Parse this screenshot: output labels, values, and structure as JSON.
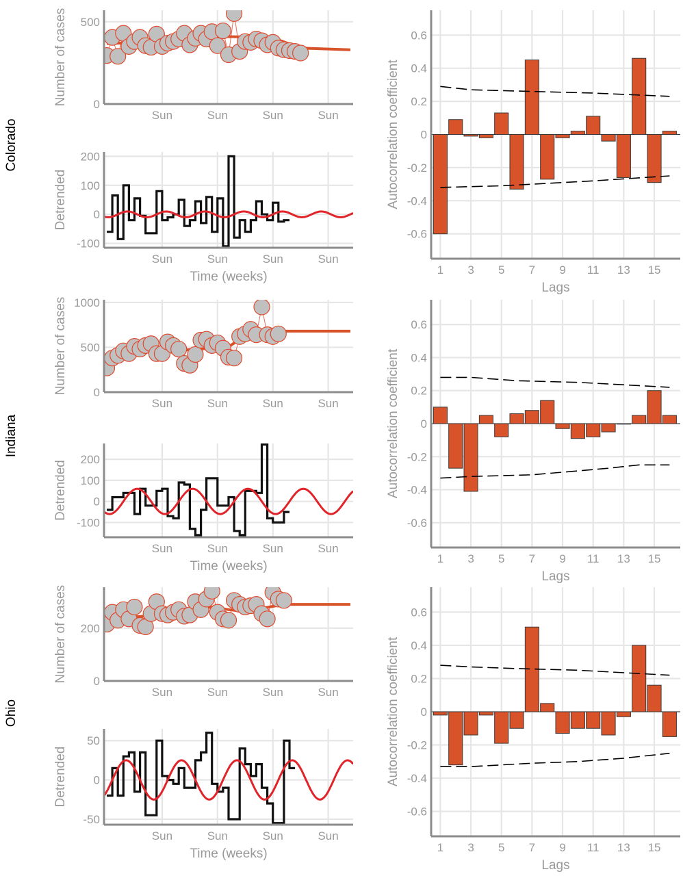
{
  "colors": {
    "grid": "#e6e6e6",
    "axis": "#8c8c8c",
    "dot_fill": "#c0c0c0",
    "dot_stroke": "#e04a2e",
    "trend": "#d9532a",
    "sine": "#e0242a",
    "bar_fill": "#d9532a",
    "bar_stroke": "#3a3a3a",
    "bound": "#000000"
  },
  "chart_data": [
    {
      "id": "colorado-cases",
      "state": "Colorado",
      "type": "scatter",
      "ylabel": "Number of cases",
      "xlabel": "",
      "xlim": [
        0.5,
        45.5
      ],
      "ylim": [
        0,
        570
      ],
      "yticks": [
        {
          "v": 0,
          "l": "0"
        },
        {
          "v": 500,
          "l": "500"
        }
      ],
      "xticks": [
        {
          "v": 11,
          "l": "Sun"
        },
        {
          "v": 21,
          "l": "Sun"
        },
        {
          "v": 31,
          "l": "Sun"
        },
        {
          "v": 41,
          "l": "Sun"
        }
      ],
      "points": [
        [
          1,
          295
        ],
        [
          2,
          405
        ],
        [
          3,
          290
        ],
        [
          4,
          430
        ],
        [
          5,
          350
        ],
        [
          6,
          380
        ],
        [
          7,
          405
        ],
        [
          8,
          355
        ],
        [
          9,
          345
        ],
        [
          10,
          425
        ],
        [
          11,
          350
        ],
        [
          12,
          370
        ],
        [
          13,
          380
        ],
        [
          14,
          395
        ],
        [
          15,
          430
        ],
        [
          16,
          360
        ],
        [
          17,
          400
        ],
        [
          18,
          430
        ],
        [
          19,
          395
        ],
        [
          20,
          440
        ],
        [
          21,
          355
        ],
        [
          22,
          445
        ],
        [
          23,
          300
        ],
        [
          24,
          550
        ],
        [
          25,
          320
        ],
        [
          26,
          380
        ],
        [
          27,
          375
        ],
        [
          28,
          395
        ],
        [
          29,
          385
        ],
        [
          30,
          360
        ],
        [
          31,
          375
        ],
        [
          32,
          340
        ],
        [
          33,
          330
        ],
        [
          34,
          325
        ],
        [
          35,
          320
        ],
        [
          36,
          310
        ]
      ],
      "trend": [
        [
          1,
          368
        ],
        [
          5,
          372
        ],
        [
          10,
          385
        ],
        [
          15,
          400
        ],
        [
          20,
          412
        ],
        [
          25,
          408
        ],
        [
          28,
          405
        ],
        [
          32,
          390
        ],
        [
          36,
          340
        ],
        [
          45,
          330
        ]
      ]
    },
    {
      "id": "colorado-detrended",
      "state": "Colorado",
      "type": "line",
      "ylabel": "Detrended",
      "xlabel": "Time (weeks)",
      "xlim": [
        0.5,
        45.5
      ],
      "ylim": [
        -115,
        215
      ],
      "yticks": [
        {
          "v": -100,
          "l": "-100"
        },
        {
          "v": 0,
          "l": "0"
        },
        {
          "v": 100,
          "l": "100"
        },
        {
          "v": 200,
          "l": "200"
        }
      ],
      "xticks": [
        {
          "v": 11,
          "l": "Sun"
        },
        {
          "v": 21,
          "l": "Sun"
        },
        {
          "v": 31,
          "l": "Sun"
        },
        {
          "v": 41,
          "l": "Sun"
        }
      ],
      "residual": [
        -60,
        65,
        -85,
        100,
        -20,
        55,
        -5,
        -65,
        -65,
        80,
        -20,
        -10,
        0,
        50,
        -40,
        -20,
        45,
        -30,
        60,
        -60,
        55,
        -110,
        200,
        -80,
        -20,
        -60,
        -20,
        45,
        0,
        -20,
        40,
        -25,
        -20
      ],
      "sine": {
        "amp": 10,
        "period": 7,
        "phase": 3
      }
    },
    {
      "id": "colorado-acf",
      "state": "Colorado",
      "type": "bar",
      "ylabel": "Autocorrelation coefficient",
      "xlabel": "Lags",
      "xlim": [
        0.4,
        16.7
      ],
      "ylim": [
        -0.75,
        0.75
      ],
      "yticks": [
        {
          "v": -0.6,
          "l": "-0.6"
        },
        {
          "v": -0.4,
          "l": "-0.4"
        },
        {
          "v": -0.2,
          "l": "-0.2"
        },
        {
          "v": 0,
          "l": "0"
        },
        {
          "v": 0.2,
          "l": "0.2"
        },
        {
          "v": 0.4,
          "l": "0.4"
        },
        {
          "v": 0.6,
          "l": "0.6"
        }
      ],
      "xticks": [
        {
          "v": 1,
          "l": "1"
        },
        {
          "v": 3,
          "l": "3"
        },
        {
          "v": 5,
          "l": "5"
        },
        {
          "v": 7,
          "l": "7"
        },
        {
          "v": 9,
          "l": "9"
        },
        {
          "v": 11,
          "l": "11"
        },
        {
          "v": 13,
          "l": "13"
        },
        {
          "v": 15,
          "l": "15"
        }
      ],
      "values": [
        -0.6,
        0.09,
        -0.01,
        -0.02,
        0.13,
        -0.33,
        0.45,
        -0.27,
        -0.02,
        0.02,
        0.11,
        -0.04,
        -0.26,
        0.46,
        -0.29,
        0.02
      ],
      "upper": [
        [
          1,
          0.29
        ],
        [
          3,
          0.27
        ],
        [
          7,
          0.26
        ],
        [
          11,
          0.25
        ],
        [
          16,
          0.23
        ]
      ],
      "lower": [
        [
          1,
          -0.32
        ],
        [
          5,
          -0.31
        ],
        [
          7,
          -0.3
        ],
        [
          11,
          -0.28
        ],
        [
          16,
          -0.25
        ]
      ]
    },
    {
      "id": "indiana-cases",
      "state": "Indiana",
      "type": "scatter",
      "ylabel": "Number of cases",
      "xlabel": "",
      "xlim": [
        0.5,
        45.5
      ],
      "ylim": [
        0,
        1030
      ],
      "yticks": [
        {
          "v": 0,
          "l": "0"
        },
        {
          "v": 500,
          "l": "500"
        },
        {
          "v": 1000,
          "l": "1000"
        }
      ],
      "xticks": [
        {
          "v": 11,
          "l": "Sun"
        },
        {
          "v": 21,
          "l": "Sun"
        },
        {
          "v": 31,
          "l": "Sun"
        },
        {
          "v": 41,
          "l": "Sun"
        }
      ],
      "points": [
        [
          1,
          270
        ],
        [
          2,
          380
        ],
        [
          3,
          410
        ],
        [
          4,
          460
        ],
        [
          5,
          430
        ],
        [
          6,
          510
        ],
        [
          7,
          480
        ],
        [
          8,
          520
        ],
        [
          9,
          540
        ],
        [
          10,
          430
        ],
        [
          11,
          430
        ],
        [
          12,
          560
        ],
        [
          13,
          520
        ],
        [
          14,
          480
        ],
        [
          15,
          320
        ],
        [
          16,
          300
        ],
        [
          17,
          420
        ],
        [
          18,
          580
        ],
        [
          19,
          590
        ],
        [
          20,
          520
        ],
        [
          21,
          550
        ],
        [
          22,
          490
        ],
        [
          23,
          390
        ],
        [
          24,
          380
        ],
        [
          25,
          620
        ],
        [
          26,
          650
        ],
        [
          27,
          700
        ],
        [
          28,
          640
        ],
        [
          29,
          950
        ],
        [
          30,
          640
        ],
        [
          31,
          620
        ],
        [
          32,
          650
        ]
      ],
      "trend": [
        [
          1,
          340
        ],
        [
          5,
          410
        ],
        [
          10,
          470
        ],
        [
          15,
          470
        ],
        [
          18,
          480
        ],
        [
          21,
          500
        ],
        [
          23,
          505
        ],
        [
          25,
          590
        ],
        [
          27,
          640
        ],
        [
          30,
          690
        ],
        [
          32,
          680
        ],
        [
          45,
          680
        ]
      ]
    },
    {
      "id": "indiana-detrended",
      "state": "Indiana",
      "type": "line",
      "ylabel": "Detrended",
      "xlabel": "Time (weeks)",
      "xlim": [
        0.5,
        45.5
      ],
      "ylim": [
        -170,
        275
      ],
      "yticks": [
        {
          "v": -100,
          "l": "-100"
        },
        {
          "v": 0,
          "l": "0"
        },
        {
          "v": 100,
          "l": "100"
        },
        {
          "v": 200,
          "l": "200"
        }
      ],
      "xticks": [
        {
          "v": 11,
          "l": "Sun"
        },
        {
          "v": 21,
          "l": "Sun"
        },
        {
          "v": 31,
          "l": "Sun"
        },
        {
          "v": 41,
          "l": "Sun"
        }
      ],
      "residual": [
        -40,
        20,
        20,
        40,
        40,
        -60,
        60,
        -20,
        -20,
        50,
        60,
        -70,
        -80,
        90,
        80,
        -130,
        -160,
        -40,
        110,
        110,
        -20,
        -20,
        20,
        -140,
        -160,
        50,
        50,
        40,
        270,
        -80,
        -100,
        -100,
        -50
      ],
      "sine": {
        "amp": 60,
        "period": 10,
        "phase": 4
      }
    },
    {
      "id": "indiana-acf",
      "state": "Indiana",
      "type": "bar",
      "ylabel": "Autocorrelation coefficient",
      "xlabel": "Lags",
      "xlim": [
        0.4,
        16.7
      ],
      "ylim": [
        -0.75,
        0.75
      ],
      "yticks": [
        {
          "v": -0.6,
          "l": "-0.6"
        },
        {
          "v": -0.4,
          "l": "-0.4"
        },
        {
          "v": -0.2,
          "l": "-0.2"
        },
        {
          "v": 0,
          "l": "0"
        },
        {
          "v": 0.2,
          "l": "0.2"
        },
        {
          "v": 0.4,
          "l": "0.4"
        },
        {
          "v": 0.6,
          "l": "0.6"
        }
      ],
      "xticks": [
        {
          "v": 1,
          "l": "1"
        },
        {
          "v": 3,
          "l": "3"
        },
        {
          "v": 5,
          "l": "5"
        },
        {
          "v": 7,
          "l": "7"
        },
        {
          "v": 9,
          "l": "9"
        },
        {
          "v": 11,
          "l": "11"
        },
        {
          "v": 13,
          "l": "13"
        },
        {
          "v": 15,
          "l": "15"
        }
      ],
      "values": [
        0.1,
        -0.27,
        -0.41,
        0.05,
        -0.08,
        0.06,
        0.08,
        0.14,
        -0.03,
        -0.09,
        -0.08,
        -0.05,
        0.0,
        0.05,
        0.2,
        0.05
      ],
      "upper": [
        [
          1,
          0.28
        ],
        [
          3,
          0.28
        ],
        [
          6,
          0.26
        ],
        [
          10,
          0.25
        ],
        [
          16,
          0.22
        ]
      ],
      "lower": [
        [
          1,
          -0.33
        ],
        [
          3,
          -0.32
        ],
        [
          7,
          -0.31
        ],
        [
          12,
          -0.27
        ],
        [
          14,
          -0.25
        ],
        [
          16,
          -0.25
        ]
      ]
    },
    {
      "id": "ohio-cases",
      "state": "Ohio",
      "type": "scatter",
      "ylabel": "Number of cases",
      "xlabel": "",
      "xlim": [
        0.5,
        45.5
      ],
      "ylim": [
        0,
        355
      ],
      "yticks": [
        {
          "v": 0,
          "l": "0"
        },
        {
          "v": 200,
          "l": "200"
        }
      ],
      "xticks": [
        {
          "v": 11,
          "l": "Sun"
        },
        {
          "v": 21,
          "l": "Sun"
        },
        {
          "v": 31,
          "l": "Sun"
        },
        {
          "v": 41,
          "l": "Sun"
        }
      ],
      "points": [
        [
          1,
          215
        ],
        [
          2,
          260
        ],
        [
          3,
          230
        ],
        [
          4,
          270
        ],
        [
          5,
          235
        ],
        [
          6,
          280
        ],
        [
          7,
          210
        ],
        [
          8,
          205
        ],
        [
          9,
          255
        ],
        [
          10,
          300
        ],
        [
          11,
          255
        ],
        [
          12,
          250
        ],
        [
          13,
          260
        ],
        [
          14,
          270
        ],
        [
          15,
          245
        ],
        [
          16,
          250
        ],
        [
          17,
          300
        ],
        [
          18,
          270
        ],
        [
          19,
          310
        ],
        [
          20,
          340
        ],
        [
          21,
          260
        ],
        [
          22,
          235
        ],
        [
          23,
          230
        ],
        [
          24,
          305
        ],
        [
          25,
          290
        ],
        [
          26,
          280
        ],
        [
          27,
          285
        ],
        [
          28,
          290
        ],
        [
          29,
          255
        ],
        [
          30,
          235
        ],
        [
          31,
          335
        ],
        [
          32,
          310
        ],
        [
          33,
          305
        ]
      ],
      "trend": [
        [
          1,
          240
        ],
        [
          5,
          240
        ],
        [
          10,
          250
        ],
        [
          15,
          265
        ],
        [
          20,
          280
        ],
        [
          23,
          270
        ],
        [
          25,
          265
        ],
        [
          29,
          275
        ],
        [
          33,
          290
        ],
        [
          45,
          290
        ]
      ]
    },
    {
      "id": "ohio-detrended",
      "state": "Ohio",
      "type": "line",
      "ylabel": "Detrended",
      "xlabel": "Time (weeks)",
      "xlim": [
        0.5,
        45.5
      ],
      "ylim": [
        -57,
        65
      ],
      "yticks": [
        {
          "v": -50,
          "l": "-50"
        },
        {
          "v": 0,
          "l": "0"
        },
        {
          "v": 50,
          "l": "50"
        }
      ],
      "xticks": [
        {
          "v": 11,
          "l": "Sun"
        },
        {
          "v": 21,
          "l": "Sun"
        },
        {
          "v": 31,
          "l": "Sun"
        },
        {
          "v": 41,
          "l": "Sun"
        }
      ],
      "residual": [
        -20,
        15,
        -20,
        30,
        35,
        -15,
        35,
        -45,
        -45,
        50,
        5,
        0,
        -5,
        15,
        -10,
        -10,
        25,
        35,
        60,
        -5,
        -15,
        -10,
        -50,
        -50,
        40,
        20,
        5,
        20,
        -10,
        -30,
        -55,
        -55,
        50,
        15
      ],
      "sine": {
        "amp": 25,
        "period": 10,
        "phase": 2
      }
    },
    {
      "id": "ohio-acf",
      "state": "Ohio",
      "type": "bar",
      "ylabel": "Autocorrelation coefficient",
      "xlabel": "Lags",
      "xlim": [
        0.4,
        16.7
      ],
      "ylim": [
        -0.75,
        0.75
      ],
      "yticks": [
        {
          "v": -0.6,
          "l": "-0.6"
        },
        {
          "v": -0.4,
          "l": "-0.4"
        },
        {
          "v": -0.2,
          "l": "-0.2"
        },
        {
          "v": 0,
          "l": "0"
        },
        {
          "v": 0.2,
          "l": "0.2"
        },
        {
          "v": 0.4,
          "l": "0.4"
        },
        {
          "v": 0.6,
          "l": "0.6"
        }
      ],
      "xticks": [
        {
          "v": 1,
          "l": "1"
        },
        {
          "v": 3,
          "l": "3"
        },
        {
          "v": 5,
          "l": "5"
        },
        {
          "v": 7,
          "l": "7"
        },
        {
          "v": 9,
          "l": "9"
        },
        {
          "v": 11,
          "l": "11"
        },
        {
          "v": 13,
          "l": "13"
        },
        {
          "v": 15,
          "l": "15"
        }
      ],
      "values": [
        -0.02,
        -0.32,
        -0.14,
        -0.02,
        -0.19,
        -0.1,
        0.51,
        0.05,
        -0.13,
        -0.1,
        -0.1,
        -0.14,
        -0.03,
        0.4,
        0.16,
        -0.15
      ],
      "upper": [
        [
          1,
          0.28
        ],
        [
          3,
          0.27
        ],
        [
          6,
          0.26
        ],
        [
          10,
          0.25
        ],
        [
          16,
          0.22
        ]
      ],
      "lower": [
        [
          1,
          -0.33
        ],
        [
          3,
          -0.33
        ],
        [
          7,
          -0.31
        ],
        [
          10,
          -0.3
        ],
        [
          13,
          -0.28
        ],
        [
          16,
          -0.25
        ]
      ]
    }
  ],
  "states": [
    {
      "label": "Colorado"
    },
    {
      "label": "Indiana"
    },
    {
      "label": "Ohio"
    }
  ]
}
